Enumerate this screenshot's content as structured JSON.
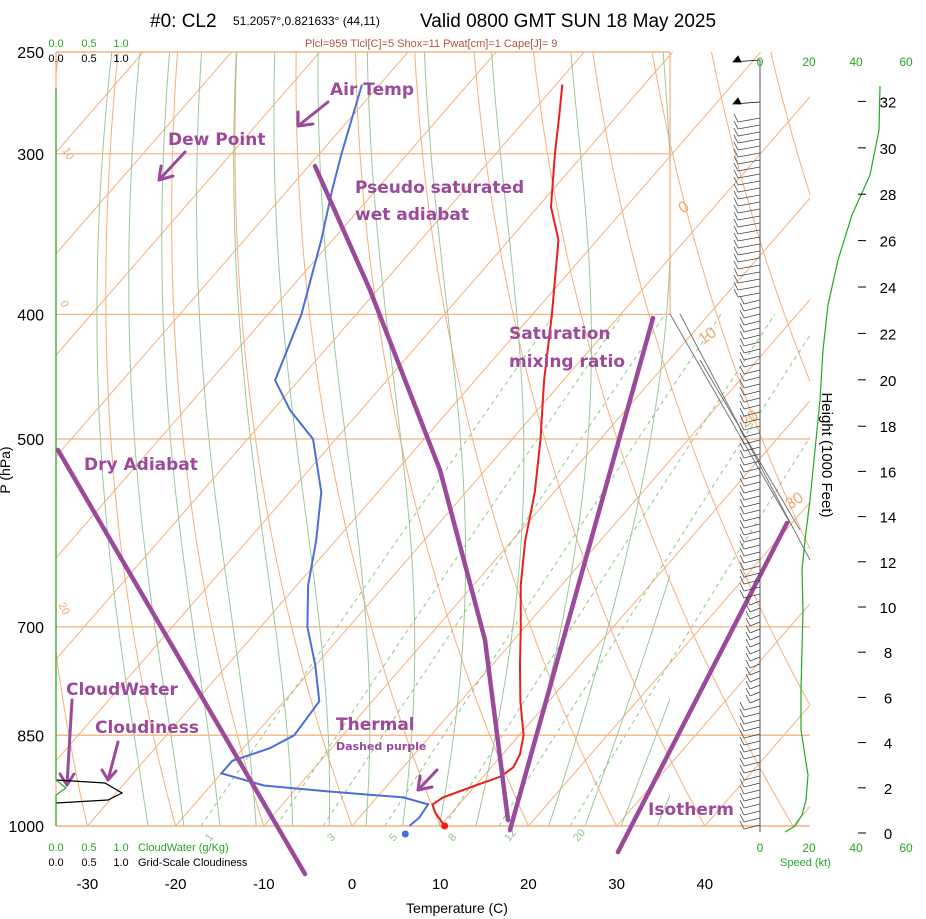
{
  "header": {
    "run": "#0: CL2",
    "coords": "51.2057°,0.821633° (44,11)",
    "valid": "Valid 0800 GMT SUN 18 May 2025",
    "indices": "Plcl=959 Tlcl[C]=5 Shox=11 Pwat[cm]=1 Cape[J]= 9"
  },
  "colors": {
    "isotherm": "#f5b07a",
    "dry_adiabat": "#f5b07a",
    "wet_adiabat": "#9cc79c",
    "mixing_ratio": "#8fc48f",
    "air_temp": "#e8201e",
    "dew_point": "#4a6fd8",
    "annotation": "#9b4a9b",
    "wind_speed": "#22a822",
    "cloud_water": "#22a822",
    "cloudiness": "#000000"
  },
  "chart_data": {
    "type": "skew-t",
    "xlabel": "Temperature (C)",
    "ylabel": "P (hPa)",
    "y2label": "Height (1000 Feet)",
    "pressure_ticks": [
      "250",
      "300",
      "400",
      "500",
      "700",
      "850",
      "1000"
    ],
    "temperature_ticks": [
      "-30",
      "-20",
      "-10",
      "0",
      "10",
      "20",
      "30",
      "40"
    ],
    "height_ticks": [
      "0",
      "2",
      "4",
      "6",
      "8",
      "10",
      "12",
      "14",
      "16",
      "18",
      "20",
      "22",
      "24",
      "26",
      "28",
      "30",
      "32"
    ],
    "xlim": [
      -33,
      47
    ],
    "ylim_hpa": [
      1000,
      250
    ],
    "isotherm_labels": [
      "10",
      "0",
      "-10",
      "-20",
      "-30",
      "-40"
    ],
    "dry_adiabat_labels": [
      "0",
      "10",
      "20",
      "30"
    ],
    "mixing_ratio_labels": [
      "1",
      "3",
      "5",
      "8",
      "12",
      "20"
    ],
    "air_temperature": {
      "name": "Air Temp",
      "points": [
        {
          "p": 1000,
          "t": 10.5
        },
        {
          "p": 985,
          "t": 9
        },
        {
          "p": 975,
          "t": 8
        },
        {
          "p": 962,
          "t": 7
        },
        {
          "p": 950,
          "t": 7.5
        },
        {
          "p": 930,
          "t": 10
        },
        {
          "p": 915,
          "t": 12
        },
        {
          "p": 900,
          "t": 12.5
        },
        {
          "p": 880,
          "t": 12
        },
        {
          "p": 850,
          "t": 10.5
        },
        {
          "p": 800,
          "t": 6.8
        },
        {
          "p": 750,
          "t": 3.2
        },
        {
          "p": 700,
          "t": -0.5
        },
        {
          "p": 650,
          "t": -4.6
        },
        {
          "p": 600,
          "t": -8.5
        },
        {
          "p": 550,
          "t": -12.2
        },
        {
          "p": 500,
          "t": -16.8
        },
        {
          "p": 450,
          "t": -22.2
        },
        {
          "p": 400,
          "t": -27.8
        },
        {
          "p": 350,
          "t": -34.4
        },
        {
          "p": 330,
          "t": -38.5
        },
        {
          "p": 300,
          "t": -43.3
        },
        {
          "p": 280,
          "t": -46.6
        },
        {
          "p": 265,
          "t": -49.3
        }
      ]
    },
    "dew_point": {
      "name": "Dew Point",
      "points": [
        {
          "p": 1000,
          "t": 6.5
        },
        {
          "p": 985,
          "t": 6.8
        },
        {
          "p": 962,
          "t": 6.5
        },
        {
          "p": 950,
          "t": 3
        },
        {
          "p": 940,
          "t": -6
        },
        {
          "p": 930,
          "t": -14
        },
        {
          "p": 910,
          "t": -20
        },
        {
          "p": 890,
          "t": -20
        },
        {
          "p": 870,
          "t": -17
        },
        {
          "p": 850,
          "t": -15.5
        },
        {
          "p": 800,
          "t": -16
        },
        {
          "p": 750,
          "t": -20
        },
        {
          "p": 700,
          "t": -24.7
        },
        {
          "p": 650,
          "t": -28.7
        },
        {
          "p": 600,
          "t": -32.2
        },
        {
          "p": 550,
          "t": -36.4
        },
        {
          "p": 500,
          "t": -42.6
        },
        {
          "p": 475,
          "t": -48
        },
        {
          "p": 450,
          "t": -52.7
        },
        {
          "p": 400,
          "t": -56.2
        },
        {
          "p": 350,
          "t": -61.3
        },
        {
          "p": 320,
          "t": -65
        },
        {
          "p": 300,
          "t": -67.5
        },
        {
          "p": 265,
          "t": -72
        }
      ]
    },
    "wind_speed_axis": [
      "0",
      "20",
      "40",
      "60"
    ],
    "cloud_axis": {
      "cloud_water_ticks": [
        "0.0",
        "0.5",
        "1.0"
      ],
      "cloudiness_ticks": [
        "0.0",
        "0.5",
        "1.0"
      ],
      "cloud_water_label": "CloudWater (g/Kg)",
      "cloudiness_label": "Grid-Scale Cloudiness",
      "speed_label": "Speed (kt)"
    }
  },
  "annotations": {
    "air_temp": "Air Temp",
    "dew_point": "Dew Point",
    "wet_adiabat_1": "Pseudo saturated",
    "wet_adiabat_2": "wet adiabat",
    "mixing_ratio_1": "Saturation",
    "mixing_ratio_2": "mixing ratio",
    "dry_adiabat": "Dry Adiabat",
    "cloud_water": "CloudWater",
    "cloudiness": "Cloudiness",
    "thermal": "Thermal",
    "thermal_sub": "Dashed purple",
    "isotherm": "Isotherm"
  }
}
